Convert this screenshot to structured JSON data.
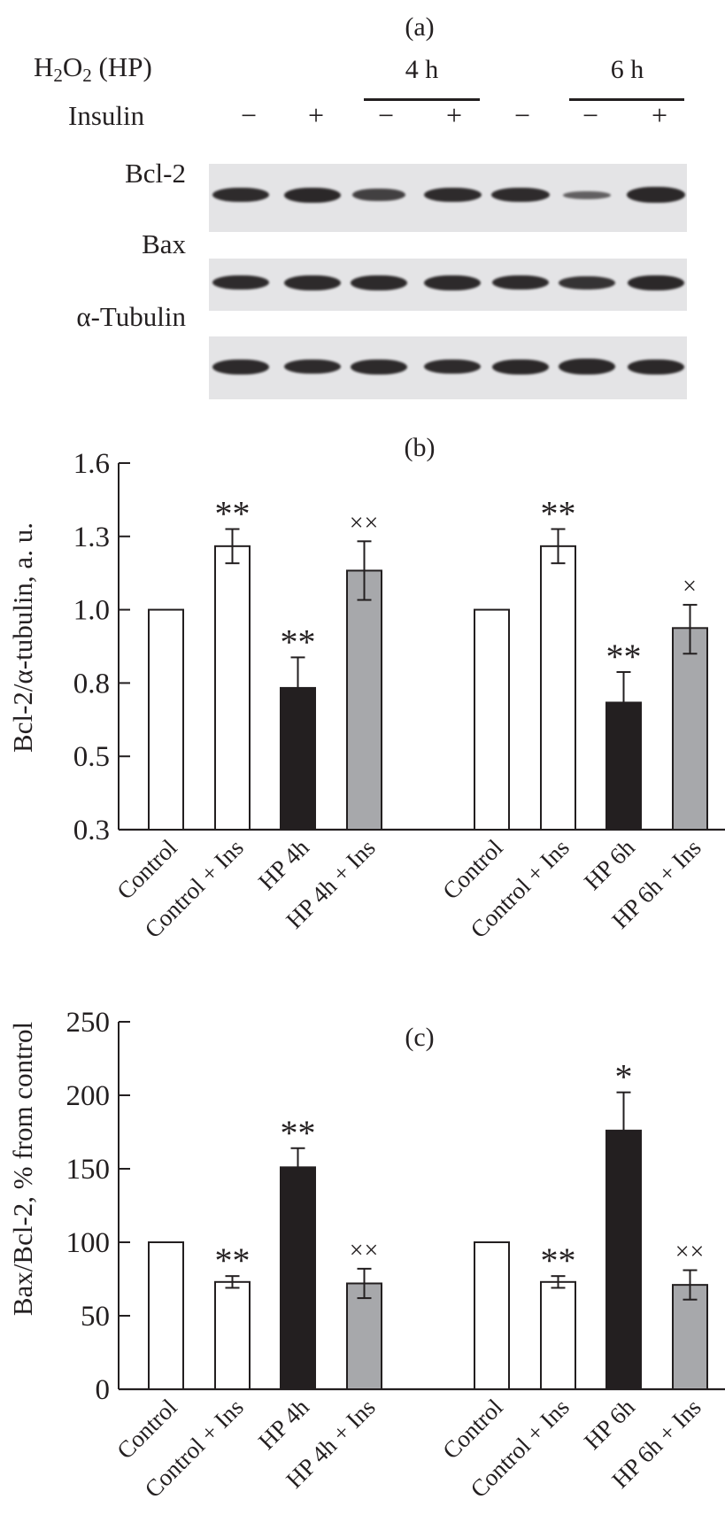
{
  "panel_a": {
    "label": "(a)",
    "treatment_label_main": "H",
    "treatment_sub1": "2",
    "treatment_mid": "O",
    "treatment_sub2": "2",
    "treatment_suffix": " (HP)",
    "insulin_label": "Insulin",
    "time_groups": [
      "4 h",
      "6 h"
    ],
    "insulin_signs": [
      "−",
      "+",
      "−",
      "+",
      "−",
      "−",
      "+"
    ],
    "blots": [
      {
        "label": "Bcl-2",
        "band_intensity": [
          0.9,
          0.95,
          0.75,
          0.9,
          0.9,
          0.5,
          1.0
        ]
      },
      {
        "label": "Bax",
        "band_intensity": [
          0.9,
          0.92,
          0.92,
          0.92,
          0.9,
          0.85,
          0.95
        ]
      },
      {
        "label": "α-Tubulin",
        "band_intensity": [
          0.92,
          0.9,
          0.92,
          0.9,
          0.95,
          1.0,
          0.95
        ]
      }
    ]
  },
  "chart_data": [
    {
      "type": "bar",
      "panel": "(b)",
      "title": "(b)",
      "xlabel": "",
      "ylabel": "Bcl-2/α-tubulin, a. u.",
      "yticks": [
        "1.6",
        "1.3",
        "1.0",
        "0.8",
        "0.5",
        "0.3"
      ],
      "ylim": [
        0.3,
        1.6
      ],
      "grid": false,
      "categories": [
        "Control",
        "Control + Ins",
        "HP 4h",
        "HP 4h + Ins",
        "Control",
        "Control + Ins",
        "HP 6h",
        "HP 6h + Ins"
      ],
      "groups": [
        "4h",
        "6h"
      ],
      "values": [
        1.0,
        1.26,
        0.78,
        1.16,
        1.0,
        1.26,
        0.72,
        0.95
      ],
      "errors": [
        0,
        0.07,
        0.09,
        0.12,
        0,
        0.07,
        0.11,
        0.07
      ],
      "fills": [
        "white",
        "white",
        "black",
        "gray",
        "white",
        "white",
        "black",
        "gray"
      ],
      "annotations": [
        "",
        "**",
        "**",
        "××",
        "",
        "**",
        "**",
        "×"
      ]
    },
    {
      "type": "bar",
      "panel": "(c)",
      "title": "(c)",
      "xlabel": "",
      "ylabel": "Bax/Bcl-2, % from control",
      "yticks": [
        "250",
        "200",
        "150",
        "100",
        "50",
        "0"
      ],
      "ylim": [
        0,
        250
      ],
      "grid": false,
      "categories": [
        "Control",
        "Control + Ins",
        "HP 4h",
        "HP 4h + Ins",
        "Control",
        "Control + Ins",
        "HP 6h",
        "HP 6h + Ins"
      ],
      "groups": [
        "4h",
        "6h"
      ],
      "values": [
        100,
        73,
        151,
        72,
        100,
        73,
        176,
        71
      ],
      "errors": [
        0,
        4,
        13,
        10,
        0,
        4,
        26,
        10
      ],
      "fills": [
        "white",
        "white",
        "black",
        "gray",
        "white",
        "white",
        "black",
        "gray"
      ],
      "annotations": [
        "",
        "**",
        "**",
        "××",
        "",
        "**",
        "*",
        "××"
      ]
    }
  ],
  "colors": {
    "ink": "#231f20",
    "white": "#ffffff",
    "black": "#231f20",
    "gray": "#a7a8ab",
    "blot_bg": "#e4e4e6",
    "band": "#2b2829"
  }
}
